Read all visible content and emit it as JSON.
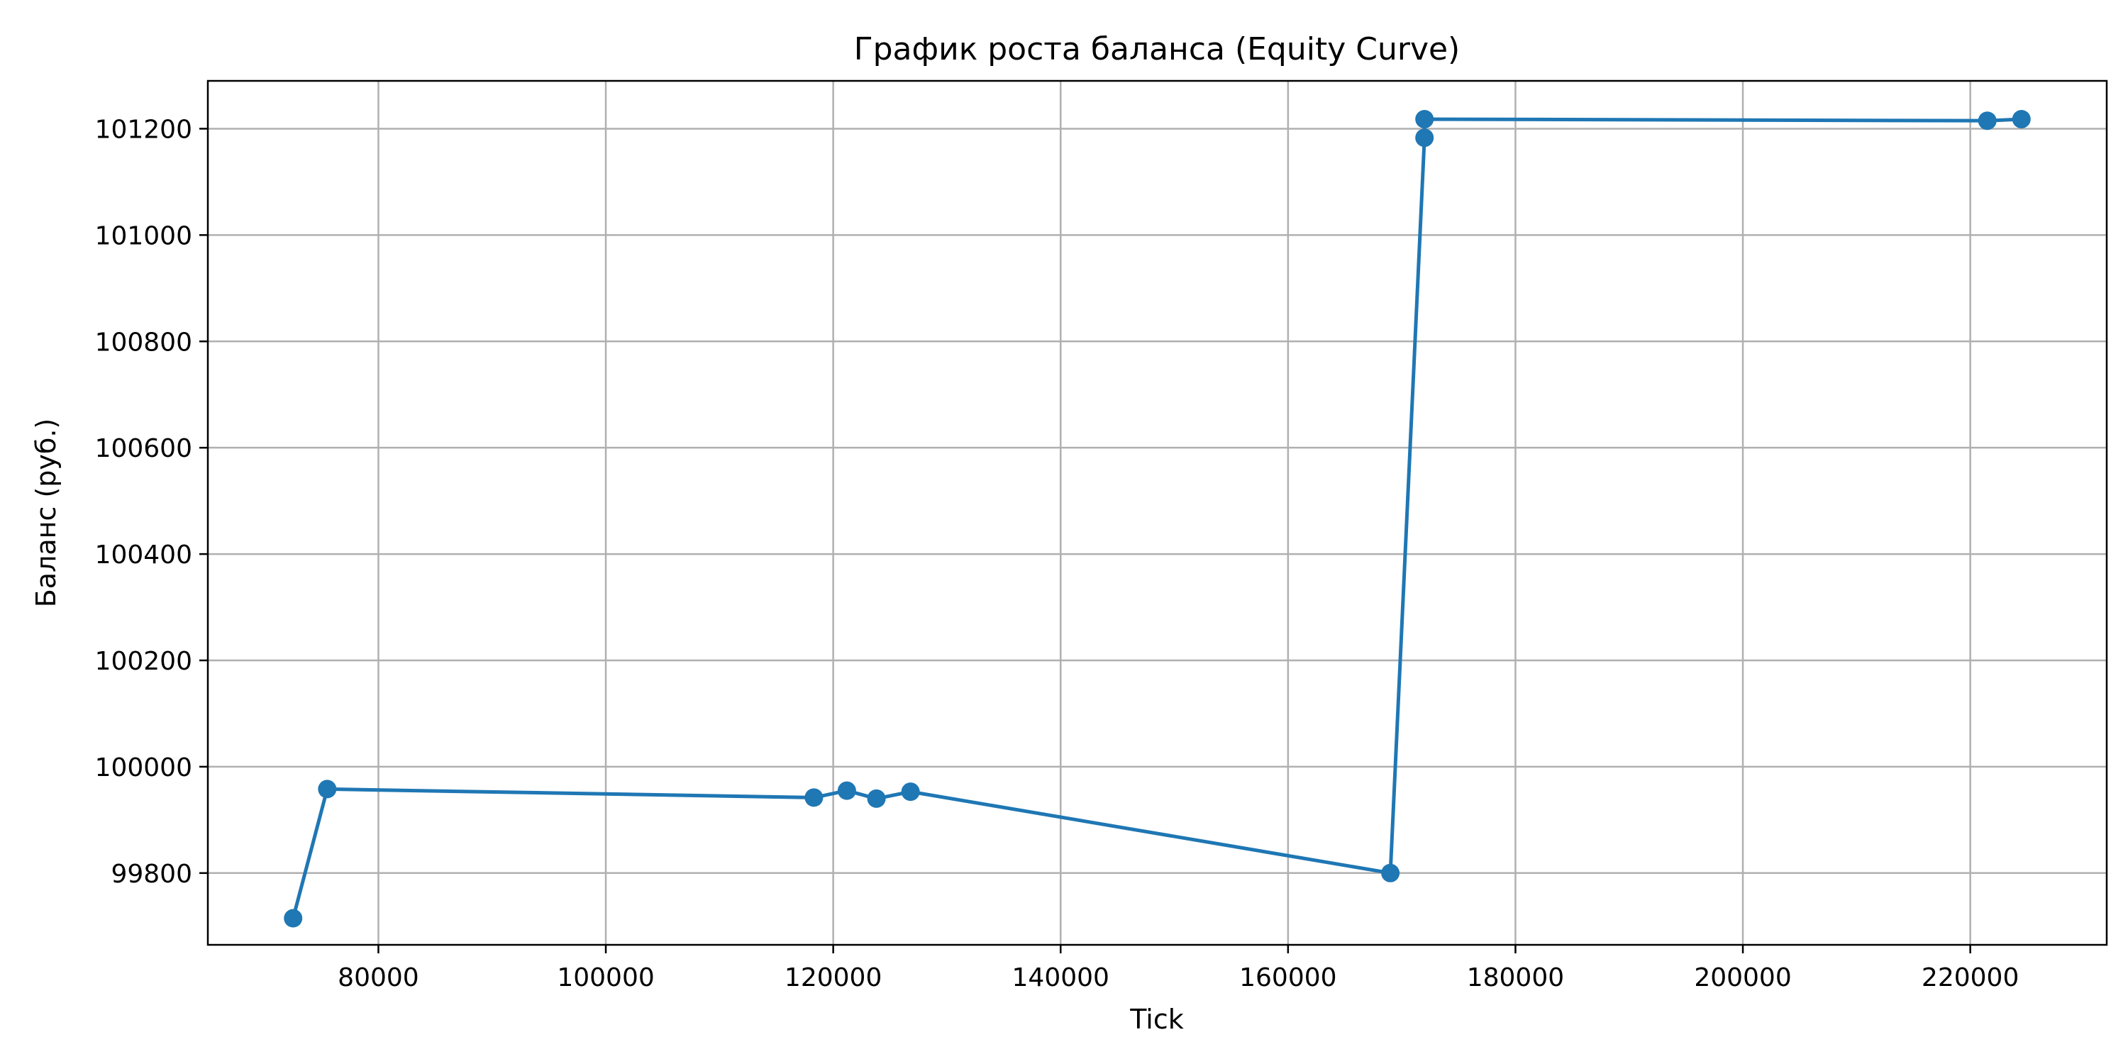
{
  "chart_data": {
    "type": "line",
    "title": "График роста баланса (Equity Curve)",
    "xlabel": "Tick",
    "ylabel": "Баланс (руб.)",
    "xlim": [
      65000,
      232000
    ],
    "ylim": [
      99665,
      101290
    ],
    "xticks": [
      80000,
      100000,
      120000,
      140000,
      160000,
      180000,
      200000,
      220000
    ],
    "yticks": [
      99800,
      100000,
      100200,
      100400,
      100600,
      100800,
      101000,
      101200
    ],
    "grid": true,
    "legend": "none",
    "series": [
      {
        "color": "#1f77b4",
        "marker": "circle",
        "x": [
          72500,
          75500,
          118300,
          121200,
          123800,
          126800,
          169000,
          172000,
          172000,
          221500,
          224500
        ],
        "y": [
          99715,
          99958,
          99942,
          99955,
          99940,
          99953,
          99800,
          101183,
          101218,
          101215,
          101218
        ]
      }
    ]
  }
}
